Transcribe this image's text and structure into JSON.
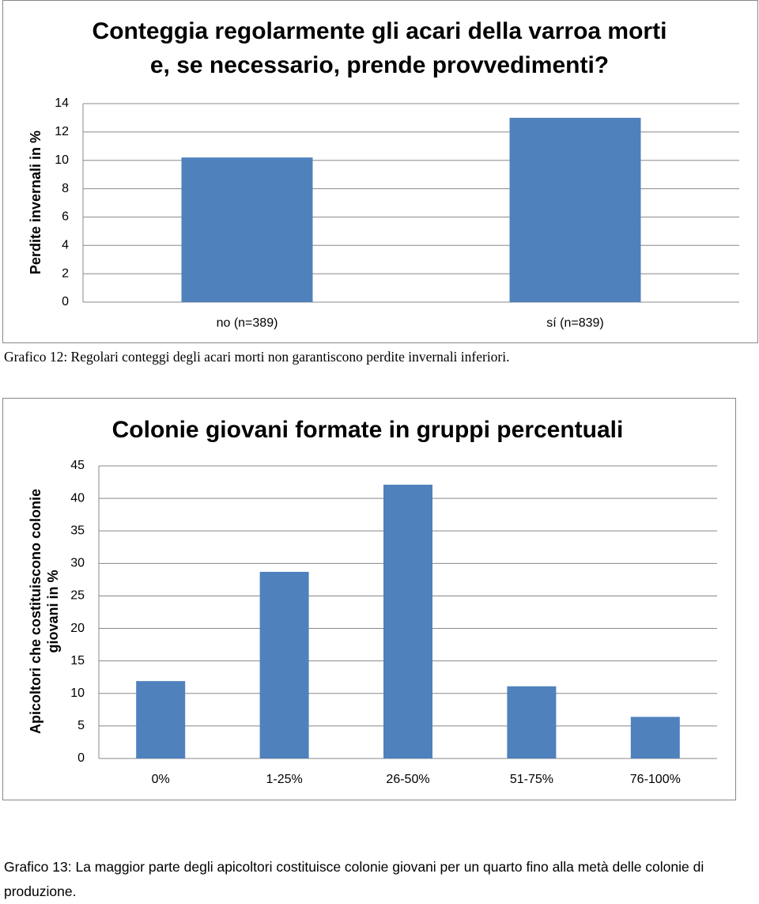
{
  "chart_data": [
    {
      "type": "bar",
      "title": "Conteggia regolarmente gli acari della varroa morti e, se necessario, prende provvedimenti?",
      "y_label": "Perdite invernali in %",
      "categories": [
        "no (n=389)",
        "sí (n=839)"
      ],
      "values": [
        10.2,
        13.0
      ],
      "color": "#4f81bd",
      "ylim": [
        0,
        14
      ],
      "yticks": [
        0,
        2,
        4,
        6,
        8,
        10,
        12,
        14
      ],
      "grid": true
    },
    {
      "type": "bar",
      "title": "Colonie giovani formate in gruppi percentuali",
      "y_label": "Apicoltori che costituiscono colonie giovani in %",
      "categories": [
        "0%",
        "1-25%",
        "26-50%",
        "51-75%",
        "76-100%"
      ],
      "values": [
        11.9,
        28.7,
        42.1,
        11.1,
        6.4
      ],
      "color": "#4f81bd",
      "ylim": [
        0,
        45
      ],
      "yticks": [
        0,
        5,
        10,
        15,
        20,
        25,
        30,
        35,
        40,
        45
      ],
      "grid": true
    }
  ],
  "captions": [
    "Grafico 12: Regolari conteggi degli acari morti non garantiscono perdite invernali inferiori.",
    "Grafico 13: La maggior parte degli apicoltori costituisce colonie giovani per un quarto fino alla metà delle colonie di produzione."
  ]
}
